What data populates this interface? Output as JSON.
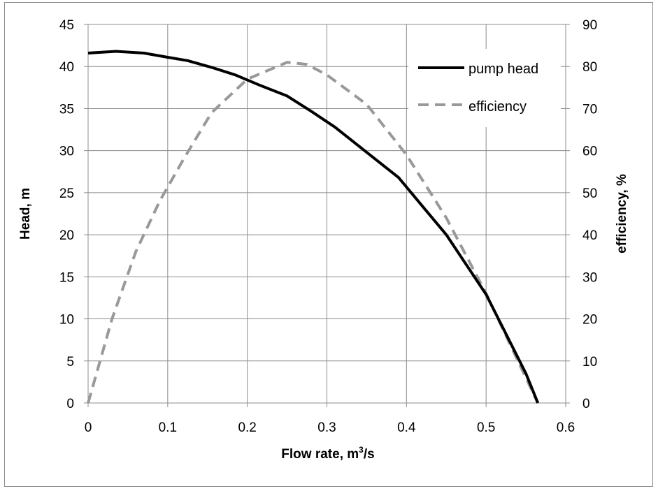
{
  "chart_data": {
    "type": "line",
    "title": "",
    "xlabel": "Flow rate, m",
    "xlabel_superscript": "3",
    "xlabel_suffix": "/s",
    "ylabel": "Head, m",
    "y2label": "efficiency, %",
    "xlim": [
      0,
      0.6
    ],
    "ylim": [
      0,
      45
    ],
    "y2lim": [
      0,
      90
    ],
    "x_ticks": [
      "0",
      "0.1",
      "0.2",
      "0.3",
      "0.4",
      "0.5",
      "0.6"
    ],
    "y_ticks": [
      "0",
      "5",
      "10",
      "15",
      "20",
      "25",
      "30",
      "35",
      "40",
      "45"
    ],
    "y2_ticks": [
      "0",
      "10",
      "20",
      "30",
      "40",
      "50",
      "60",
      "70",
      "80",
      "90"
    ],
    "grid": true,
    "legend_position": "top-right",
    "series": [
      {
        "name": "pump head",
        "axis": "left",
        "style": "solid",
        "color": "#000000",
        "x": [
          0,
          0.035,
          0.07,
          0.1,
          0.125,
          0.155,
          0.185,
          0.215,
          0.25,
          0.28,
          0.31,
          0.35,
          0.39,
          0.42,
          0.45,
          0.5,
          0.55,
          0.565
        ],
        "y": [
          41.6,
          41.8,
          41.6,
          41.1,
          40.7,
          39.9,
          39.0,
          37.8,
          36.5,
          34.7,
          32.8,
          29.8,
          26.8,
          23.4,
          20.0,
          12.9,
          3.5,
          0.0
        ]
      },
      {
        "name": "efficiency",
        "axis": "right",
        "style": "dashed",
        "color": "#999999",
        "x": [
          0,
          0.03,
          0.06,
          0.09,
          0.12,
          0.155,
          0.2,
          0.25,
          0.275,
          0.3,
          0.35,
          0.4,
          0.45,
          0.5,
          0.55,
          0.565
        ],
        "y": [
          0,
          20,
          36,
          48,
          58,
          69,
          77,
          81,
          80.5,
          78,
          71,
          59,
          44,
          26,
          6,
          0
        ]
      }
    ]
  }
}
